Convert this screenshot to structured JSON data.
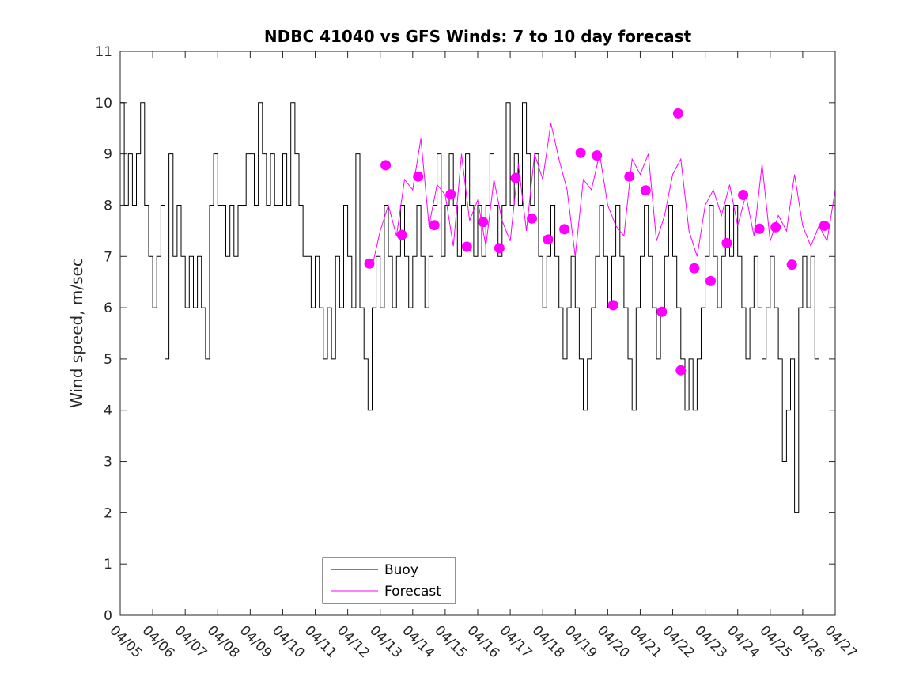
{
  "chart_data": {
    "type": "line",
    "title": "NDBC 41040 vs GFS Winds: 7 to 10 day forecast",
    "xlabel": "",
    "ylabel": "Wind speed, m/sec",
    "xlim": [
      "04/05",
      "04/27"
    ],
    "ylim": [
      0,
      11
    ],
    "x_tick_labels": [
      "04/05",
      "04/06",
      "04/07",
      "04/08",
      "04/09",
      "04/10",
      "04/11",
      "04/12",
      "04/13",
      "04/14",
      "04/15",
      "04/16",
      "04/17",
      "04/18",
      "04/19",
      "04/20",
      "04/21",
      "04/22",
      "04/23",
      "04/24",
      "04/25",
      "04/26",
      "04/27"
    ],
    "y_ticks": [
      0,
      1,
      2,
      3,
      4,
      5,
      6,
      7,
      8,
      9,
      10,
      11
    ],
    "grid": false,
    "legend": {
      "placement": "bottom-center",
      "entries": [
        "Buoy",
        "Forecast"
      ]
    },
    "colors": {
      "buoy": "#000000",
      "forecast": "#ff00ff"
    },
    "series": [
      {
        "name": "Buoy",
        "style": "step",
        "points": [
          [
            "04/05 00:00",
            10
          ],
          [
            "04/05 03:00",
            8
          ],
          [
            "04/05 06:00",
            9
          ],
          [
            "04/05 09:00",
            8
          ],
          [
            "04/05 12:00",
            9
          ],
          [
            "04/05 15:00",
            10
          ],
          [
            "04/05 18:00",
            8
          ],
          [
            "04/05 21:00",
            7
          ],
          [
            "04/06 00:00",
            6
          ],
          [
            "04/06 03:00",
            7
          ],
          [
            "04/06 06:00",
            8
          ],
          [
            "04/06 09:00",
            5
          ],
          [
            "04/06 12:00",
            9
          ],
          [
            "04/06 15:00",
            7
          ],
          [
            "04/06 18:00",
            8
          ],
          [
            "04/06 21:00",
            7
          ],
          [
            "04/07 00:00",
            6
          ],
          [
            "04/07 03:00",
            7
          ],
          [
            "04/07 06:00",
            6
          ],
          [
            "04/07 09:00",
            7
          ],
          [
            "04/07 12:00",
            6
          ],
          [
            "04/07 15:00",
            5
          ],
          [
            "04/07 18:00",
            8
          ],
          [
            "04/07 21:00",
            9
          ],
          [
            "04/08 00:00",
            8
          ],
          [
            "04/08 03:00",
            8
          ],
          [
            "04/08 06:00",
            7
          ],
          [
            "04/08 09:00",
            8
          ],
          [
            "04/08 12:00",
            7
          ],
          [
            "04/08 15:00",
            8
          ],
          [
            "04/08 18:00",
            8
          ],
          [
            "04/08 21:00",
            9
          ],
          [
            "04/09 00:00",
            9
          ],
          [
            "04/09 03:00",
            8
          ],
          [
            "04/09 06:00",
            10
          ],
          [
            "04/09 09:00",
            9
          ],
          [
            "04/09 12:00",
            8
          ],
          [
            "04/09 15:00",
            9
          ],
          [
            "04/09 18:00",
            8
          ],
          [
            "04/09 21:00",
            8
          ],
          [
            "04/10 00:00",
            9
          ],
          [
            "04/10 03:00",
            8
          ],
          [
            "04/10 06:00",
            10
          ],
          [
            "04/10 09:00",
            9
          ],
          [
            "04/10 12:00",
            8
          ],
          [
            "04/10 15:00",
            7
          ],
          [
            "04/10 18:00",
            7
          ],
          [
            "04/10 21:00",
            6
          ],
          [
            "04/11 00:00",
            7
          ],
          [
            "04/11 03:00",
            6
          ],
          [
            "04/11 06:00",
            5
          ],
          [
            "04/11 09:00",
            6
          ],
          [
            "04/11 12:00",
            5
          ],
          [
            "04/11 15:00",
            7
          ],
          [
            "04/11 18:00",
            6
          ],
          [
            "04/11 21:00",
            8
          ],
          [
            "04/12 00:00",
            7
          ],
          [
            "04/12 03:00",
            6
          ],
          [
            "04/12 06:00",
            9
          ],
          [
            "04/12 09:00",
            6
          ],
          [
            "04/12 12:00",
            5
          ],
          [
            "04/12 15:00",
            4
          ],
          [
            "04/12 18:00",
            6
          ],
          [
            "04/12 21:00",
            7
          ],
          [
            "04/13 00:00",
            6
          ],
          [
            "04/13 03:00",
            8
          ],
          [
            "04/13 06:00",
            7
          ],
          [
            "04/13 09:00",
            6
          ],
          [
            "04/13 12:00",
            7
          ],
          [
            "04/13 15:00",
            8
          ],
          [
            "04/13 18:00",
            7
          ],
          [
            "04/13 21:00",
            6
          ],
          [
            "04/14 00:00",
            7
          ],
          [
            "04/14 03:00",
            8
          ],
          [
            "04/14 06:00",
            7
          ],
          [
            "04/14 09:00",
            6
          ],
          [
            "04/14 12:00",
            7
          ],
          [
            "04/14 15:00",
            8
          ],
          [
            "04/14 18:00",
            9
          ],
          [
            "04/14 21:00",
            7
          ],
          [
            "04/15 00:00",
            8
          ],
          [
            "04/15 03:00",
            9
          ],
          [
            "04/15 06:00",
            8
          ],
          [
            "04/15 09:00",
            7
          ],
          [
            "04/15 12:00",
            8
          ],
          [
            "04/15 15:00",
            9
          ],
          [
            "04/15 18:00",
            8
          ],
          [
            "04/15 21:00",
            7
          ],
          [
            "04/16 00:00",
            8
          ],
          [
            "04/16 03:00",
            7
          ],
          [
            "04/16 06:00",
            8
          ],
          [
            "04/16 09:00",
            9
          ],
          [
            "04/16 12:00",
            8
          ],
          [
            "04/16 15:00",
            7
          ],
          [
            "04/16 18:00",
            8
          ],
          [
            "04/16 21:00",
            10
          ],
          [
            "04/17 00:00",
            8
          ],
          [
            "04/17 03:00",
            9
          ],
          [
            "04/17 06:00",
            8
          ],
          [
            "04/17 09:00",
            10
          ],
          [
            "04/17 12:00",
            9
          ],
          [
            "04/17 15:00",
            8
          ],
          [
            "04/17 18:00",
            9
          ],
          [
            "04/17 21:00",
            7
          ],
          [
            "04/18 00:00",
            6
          ],
          [
            "04/18 03:00",
            7
          ],
          [
            "04/18 06:00",
            8
          ],
          [
            "04/18 09:00",
            7
          ],
          [
            "04/18 12:00",
            6
          ],
          [
            "04/18 15:00",
            5
          ],
          [
            "04/18 18:00",
            6
          ],
          [
            "04/18 21:00",
            7
          ],
          [
            "04/19 00:00",
            6
          ],
          [
            "04/19 03:00",
            5
          ],
          [
            "04/19 06:00",
            4
          ],
          [
            "04/19 09:00",
            5
          ],
          [
            "04/19 12:00",
            6
          ],
          [
            "04/19 15:00",
            7
          ],
          [
            "04/19 18:00",
            8
          ],
          [
            "04/19 21:00",
            7
          ],
          [
            "04/20 00:00",
            6
          ],
          [
            "04/20 03:00",
            7
          ],
          [
            "04/20 06:00",
            8
          ],
          [
            "04/20 09:00",
            7
          ],
          [
            "04/20 12:00",
            6
          ],
          [
            "04/20 15:00",
            5
          ],
          [
            "04/20 18:00",
            4
          ],
          [
            "04/20 21:00",
            6
          ],
          [
            "04/21 00:00",
            7
          ],
          [
            "04/21 03:00",
            8
          ],
          [
            "04/21 06:00",
            7
          ],
          [
            "04/21 09:00",
            6
          ],
          [
            "04/21 12:00",
            5
          ],
          [
            "04/21 15:00",
            6
          ],
          [
            "04/21 18:00",
            7
          ],
          [
            "04/21 21:00",
            8
          ],
          [
            "04/22 00:00",
            7
          ],
          [
            "04/22 03:00",
            6
          ],
          [
            "04/22 06:00",
            5
          ],
          [
            "04/22 09:00",
            4
          ],
          [
            "04/22 12:00",
            5
          ],
          [
            "04/22 15:00",
            4
          ],
          [
            "04/22 18:00",
            5
          ],
          [
            "04/22 21:00",
            6
          ],
          [
            "04/23 00:00",
            7
          ],
          [
            "04/23 03:00",
            8
          ],
          [
            "04/23 06:00",
            7
          ],
          [
            "04/23 09:00",
            6
          ],
          [
            "04/23 12:00",
            7
          ],
          [
            "04/23 15:00",
            8
          ],
          [
            "04/23 18:00",
            7
          ],
          [
            "04/23 21:00",
            8
          ],
          [
            "04/24 00:00",
            7
          ],
          [
            "04/24 03:00",
            6
          ],
          [
            "04/24 06:00",
            5
          ],
          [
            "04/24 09:00",
            6
          ],
          [
            "04/24 12:00",
            7
          ],
          [
            "04/24 15:00",
            6
          ],
          [
            "04/24 18:00",
            5
          ],
          [
            "04/24 21:00",
            6
          ],
          [
            "04/25 00:00",
            7
          ],
          [
            "04/25 03:00",
            6
          ],
          [
            "04/25 06:00",
            5
          ],
          [
            "04/25 09:00",
            3
          ],
          [
            "04/25 12:00",
            4
          ],
          [
            "04/25 15:00",
            5
          ],
          [
            "04/25 18:00",
            2
          ],
          [
            "04/25 21:00",
            6
          ],
          [
            "04/26 00:00",
            7
          ],
          [
            "04/26 03:00",
            6
          ],
          [
            "04/26 06:00",
            7
          ],
          [
            "04/26 09:00",
            5
          ],
          [
            "04/26 12:00",
            6
          ]
        ]
      },
      {
        "name": "Forecast",
        "style": "line",
        "points": [
          [
            "04/12 18:00",
            6.8
          ],
          [
            "04/13 00:00",
            7.5
          ],
          [
            "04/13 06:00",
            8.0
          ],
          [
            "04/13 12:00",
            7.4
          ],
          [
            "04/13 18:00",
            8.5
          ],
          [
            "04/14 00:00",
            8.3
          ],
          [
            "04/14 06:00",
            9.3
          ],
          [
            "04/14 12:00",
            7.6
          ],
          [
            "04/14 18:00",
            8.4
          ],
          [
            "04/15 00:00",
            8.2
          ],
          [
            "04/15 06:00",
            7.2
          ],
          [
            "04/15 12:00",
            9.0
          ],
          [
            "04/15 18:00",
            7.7
          ],
          [
            "04/16 00:00",
            8.1
          ],
          [
            "04/16 06:00",
            7.2
          ],
          [
            "04/16 12:00",
            8.5
          ],
          [
            "04/16 18:00",
            7.7
          ],
          [
            "04/17 00:00",
            7.3
          ],
          [
            "04/17 06:00",
            8.8
          ],
          [
            "04/17 12:00",
            7.5
          ],
          [
            "04/17 18:00",
            9.0
          ],
          [
            "04/18 00:00",
            8.5
          ],
          [
            "04/18 06:00",
            9.6
          ],
          [
            "04/18 12:00",
            8.9
          ],
          [
            "04/18 18:00",
            8.3
          ],
          [
            "04/19 00:00",
            7.0
          ],
          [
            "04/19 06:00",
            8.5
          ],
          [
            "04/19 12:00",
            8.3
          ],
          [
            "04/19 18:00",
            9.0
          ],
          [
            "04/20 00:00",
            8.0
          ],
          [
            "04/20 06:00",
            7.6
          ],
          [
            "04/20 12:00",
            7.4
          ],
          [
            "04/20 18:00",
            8.9
          ],
          [
            "04/21 00:00",
            8.6
          ],
          [
            "04/21 06:00",
            9.0
          ],
          [
            "04/21 12:00",
            7.3
          ],
          [
            "04/21 18:00",
            7.8
          ],
          [
            "04/22 00:00",
            8.6
          ],
          [
            "04/22 06:00",
            8.9
          ],
          [
            "04/22 12:00",
            7.5
          ],
          [
            "04/22 18:00",
            7.0
          ],
          [
            "04/23 00:00",
            8.0
          ],
          [
            "04/23 06:00",
            8.3
          ],
          [
            "04/23 12:00",
            7.8
          ],
          [
            "04/23 18:00",
            8.4
          ],
          [
            "04/24 00:00",
            7.6
          ],
          [
            "04/24 06:00",
            8.2
          ],
          [
            "04/24 12:00",
            7.4
          ],
          [
            "04/24 18:00",
            8.8
          ],
          [
            "04/25 00:00",
            7.3
          ],
          [
            "04/25 06:00",
            7.8
          ],
          [
            "04/25 12:00",
            7.5
          ],
          [
            "04/25 18:00",
            8.6
          ],
          [
            "04/26 00:00",
            7.6
          ],
          [
            "04/26 06:00",
            7.2
          ],
          [
            "04/26 12:00",
            7.6
          ],
          [
            "04/26 18:00",
            7.3
          ],
          [
            "04/27 00:00",
            8.3
          ]
        ]
      }
    ],
    "forecast_markers": [
      [
        "04/12 16:00",
        6.86
      ],
      [
        "04/13 04:00",
        8.78
      ],
      [
        "04/13 16:00",
        7.42
      ],
      [
        "04/14 04:00",
        8.56
      ],
      [
        "04/14 16:00",
        7.61
      ],
      [
        "04/15 04:00",
        8.21
      ],
      [
        "04/15 16:00",
        7.19
      ],
      [
        "04/16 04:00",
        7.67
      ],
      [
        "04/16 16:00",
        7.16
      ],
      [
        "04/17 04:00",
        8.53
      ],
      [
        "04/17 16:00",
        7.74
      ],
      [
        "04/18 04:00",
        7.33
      ],
      [
        "04/18 16:00",
        7.53
      ],
      [
        "04/19 04:00",
        9.02
      ],
      [
        "04/19 16:00",
        8.97
      ],
      [
        "04/20 04:00",
        6.05
      ],
      [
        "04/20 16:00",
        8.56
      ],
      [
        "04/21 04:00",
        8.29
      ],
      [
        "04/21 16:00",
        5.92
      ],
      [
        "04/22 04:00",
        9.79
      ],
      [
        "04/22 06:00",
        4.78
      ],
      [
        "04/22 16:00",
        6.77
      ],
      [
        "04/23 04:00",
        6.52
      ],
      [
        "04/23 16:00",
        7.26
      ],
      [
        "04/24 04:00",
        8.2
      ],
      [
        "04/24 16:00",
        7.54
      ],
      [
        "04/25 04:00",
        7.57
      ],
      [
        "04/25 16:00",
        6.84
      ],
      [
        "04/26 16:00",
        7.6
      ]
    ]
  }
}
